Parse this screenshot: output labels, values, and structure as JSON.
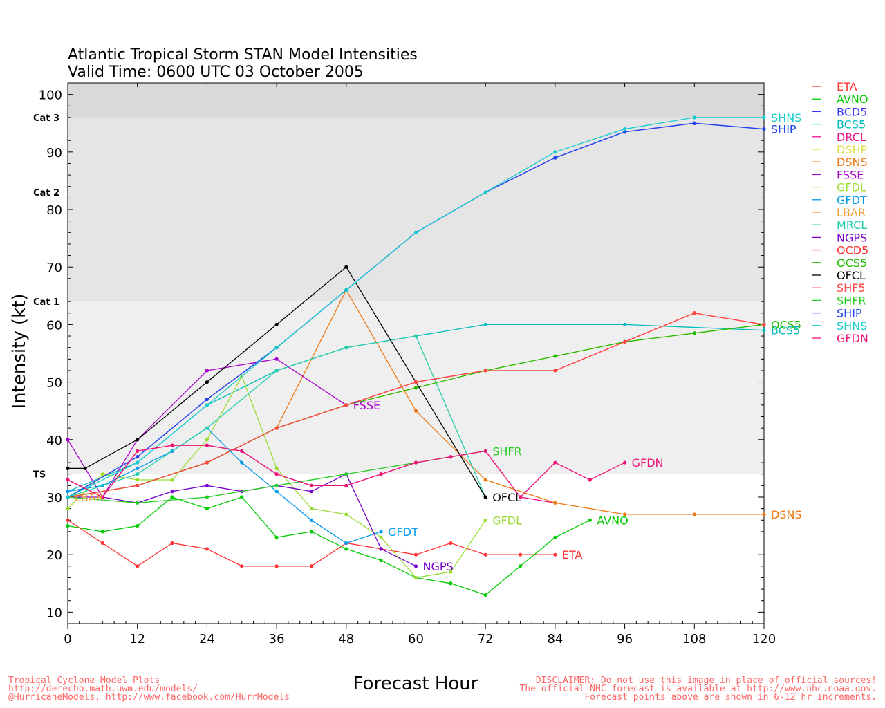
{
  "chart_data": {
    "type": "line",
    "title": "Atlantic Tropical Storm STAN Model Intensities",
    "subtitle": "Valid Time: 0600 UTC 03 October 2005",
    "xlabel": "Forecast Hour",
    "ylabel": "Intensity (kt)",
    "xlim": [
      0,
      120
    ],
    "ylim": [
      8,
      102
    ],
    "xticks": [
      0,
      12,
      24,
      36,
      48,
      60,
      72,
      84,
      96,
      108,
      120
    ],
    "yticks": [
      10,
      20,
      30,
      40,
      50,
      60,
      70,
      80,
      90,
      100
    ],
    "bands": [
      {
        "from": 34,
        "to": 64,
        "color": "#efefef"
      },
      {
        "from": 64,
        "to": 83,
        "color": "#e5e5e5"
      },
      {
        "from": 83,
        "to": 96,
        "color": "#e5e5e5"
      },
      {
        "from": 96,
        "to": 102,
        "color": "#d9d9d9"
      }
    ],
    "category_labels": [
      {
        "label": "TS",
        "value": 34
      },
      {
        "label": "Cat 1",
        "value": 64
      },
      {
        "label": "Cat 2",
        "value": 83
      },
      {
        "label": "Cat 3",
        "value": 96
      }
    ],
    "legend_position": "right",
    "series": [
      {
        "name": "ETA",
        "color": "#ff3333",
        "x": [
          0,
          6,
          12,
          18,
          24,
          30,
          36,
          42,
          48,
          54,
          60,
          66,
          72,
          78,
          84
        ],
        "y": [
          26,
          22,
          18,
          22,
          21,
          18,
          18,
          18,
          22,
          21,
          20,
          22,
          20,
          20,
          20
        ],
        "end_label": "ETA"
      },
      {
        "name": "AVNO",
        "color": "#00cc00",
        "x": [
          0,
          6,
          12,
          18,
          24,
          30,
          36,
          42,
          48,
          54,
          60,
          66,
          72,
          78,
          84,
          90
        ],
        "y": [
          25,
          24,
          25,
          30,
          28,
          30,
          23,
          24,
          21,
          19,
          16,
          15,
          13,
          18,
          23,
          26
        ],
        "end_label": "AVNO"
      },
      {
        "name": "BCD5",
        "color": "#3333ff",
        "x": [
          0,
          12,
          24,
          36,
          48,
          60,
          72,
          84,
          96,
          108,
          120
        ],
        "y": [
          30,
          37,
          47,
          56,
          66,
          76,
          83,
          89,
          93.5,
          95,
          94
        ],
        "end_label": ""
      },
      {
        "name": "BCS5",
        "color": "#00bbbb",
        "x": [
          0,
          12,
          24,
          36,
          48,
          72,
          96,
          120
        ],
        "y": [
          31,
          36,
          46,
          52,
          56,
          60,
          60,
          59
        ],
        "end_label": "BCS5"
      },
      {
        "name": "DRCL",
        "color": "#ee1188",
        "x": [
          0,
          6,
          12,
          18,
          24,
          30,
          36,
          42,
          48,
          54,
          60,
          66,
          72,
          78,
          84
        ],
        "y": [
          33,
          30,
          38,
          39,
          39,
          38,
          34,
          32,
          32,
          34,
          36,
          37,
          38,
          30,
          29
        ],
        "end_label": ""
      },
      {
        "name": "DSHP",
        "color": "#e0e040",
        "x": [
          0,
          12,
          24,
          36,
          48,
          60,
          72,
          84,
          96,
          108,
          120
        ],
        "y": [
          30,
          32,
          36,
          42,
          46,
          49,
          52,
          54.5,
          57,
          58.5,
          60
        ],
        "end_label": ""
      },
      {
        "name": "DSNS",
        "color": "#ee7711",
        "x": [
          0,
          12,
          24,
          36,
          48,
          60,
          72,
          84,
          96,
          108,
          120
        ],
        "y": [
          30,
          32,
          36,
          42,
          66,
          45,
          33,
          29,
          27,
          27,
          27
        ],
        "end_label": "DSNS"
      },
      {
        "name": "FSSE",
        "color": "#aa00cc",
        "x": [
          0,
          6,
          12,
          24,
          36,
          48
        ],
        "y": [
          40,
          30,
          40,
          52,
          54,
          46
        ],
        "end_label": "FSSE"
      },
      {
        "name": "GFDL",
        "color": "#99dd33",
        "x": [
          0,
          6,
          12,
          18,
          24,
          30,
          36,
          42,
          48,
          54,
          60,
          66,
          72
        ],
        "y": [
          28,
          34,
          33,
          33,
          40,
          51,
          35,
          28,
          27,
          23,
          16,
          17,
          26
        ],
        "end_label": "GFDL"
      },
      {
        "name": "GFDT",
        "color": "#0099ee",
        "x": [
          0,
          6,
          12,
          18,
          24,
          30,
          36,
          42,
          48,
          54
        ],
        "y": [
          31,
          32,
          35,
          38,
          42,
          36,
          31,
          26,
          22,
          24
        ],
        "end_label": "GFDT"
      },
      {
        "name": "LBAR",
        "color": "#ee9933",
        "x": [
          0
        ],
        "y": [
          30
        ],
        "end_label": "LBAR"
      },
      {
        "name": "MRCL",
        "color": "#22ccaa",
        "x": [
          0,
          12,
          24,
          36,
          48,
          60,
          72
        ],
        "y": [
          30,
          34,
          42,
          52,
          56,
          58,
          30
        ],
        "end_label": ""
      },
      {
        "name": "NGPS",
        "color": "#7700cc",
        "x": [
          0,
          6,
          12,
          18,
          24,
          30,
          36,
          42,
          48,
          54,
          60
        ],
        "y": [
          30,
          30,
          29,
          31,
          32,
          31,
          32,
          31,
          34,
          21,
          18
        ],
        "end_label": "NGPS"
      },
      {
        "name": "OCD5",
        "color": "#ff3333",
        "x": [
          0,
          12,
          24,
          36,
          48,
          60,
          72,
          84,
          96,
          108,
          120
        ],
        "y": [
          30,
          32,
          36,
          42,
          46,
          50,
          52,
          52,
          57,
          62,
          60
        ],
        "end_label": ""
      },
      {
        "name": "OCS5",
        "color": "#22bb00",
        "x": [
          0,
          12,
          24,
          36,
          48,
          60,
          72,
          84,
          96,
          108,
          120
        ],
        "y": [
          30,
          32,
          36,
          42,
          46,
          49,
          52,
          54.5,
          57,
          58.5,
          60
        ],
        "end_label": "OCS5"
      },
      {
        "name": "OFCL",
        "color": "#000000",
        "x": [
          0,
          3,
          12,
          24,
          36,
          48,
          72
        ],
        "y": [
          35,
          35,
          40,
          50,
          60,
          70,
          30
        ],
        "end_label": "OFCL"
      },
      {
        "name": "SHF5",
        "color": "#ff4444",
        "x": [
          0,
          12,
          24,
          36,
          48,
          60,
          72,
          84,
          96,
          108,
          120
        ],
        "y": [
          30,
          32,
          36,
          42,
          46,
          50,
          52,
          52,
          57,
          62,
          60
        ],
        "end_label": ""
      },
      {
        "name": "SHFR",
        "color": "#22cc22",
        "x": [
          0,
          12,
          24,
          36,
          48,
          60,
          72
        ],
        "y": [
          30,
          29,
          30,
          32,
          34,
          36,
          38
        ],
        "end_label": "SHFR"
      },
      {
        "name": "SHIP",
        "color": "#2244ee",
        "x": [
          0,
          12,
          24,
          36,
          48,
          60,
          72,
          84,
          96,
          108,
          120
        ],
        "y": [
          30,
          37,
          47,
          56,
          66,
          76,
          83,
          89,
          93.5,
          95,
          94
        ],
        "end_label": "SHIP"
      },
      {
        "name": "SHNS",
        "color": "#11cccc",
        "x": [
          0,
          12,
          24,
          36,
          48,
          60,
          72,
          84,
          96,
          108,
          120
        ],
        "y": [
          30,
          36,
          46,
          56,
          66,
          76,
          83,
          90,
          94,
          96,
          96
        ],
        "end_label": "SHNS"
      },
      {
        "name": "GFDN",
        "color": "#ee1177",
        "x": [
          0,
          6,
          12,
          18,
          24,
          30,
          36,
          42,
          48,
          54,
          60,
          66,
          72,
          78,
          84,
          90,
          96
        ],
        "y": [
          33,
          30,
          38,
          39,
          39,
          38,
          34,
          32,
          32,
          34,
          36,
          37,
          38,
          30,
          36,
          33,
          36
        ],
        "end_label": "GFDN"
      }
    ]
  },
  "footer": {
    "left_line1": "Tropical Cyclone Model Plots",
    "left_line2": "http://derecho.math.uwm.edu/models/",
    "left_line3": "@HurricaneModels, http://www.facebook.com/HurrModels",
    "right_line1": "DISCLAIMER: Do not use this image in place of official sources!",
    "right_line2": "The official NHC forecast is available at http://www.nhc.noaa.gov.",
    "right_line3": "Forecast points above are shown in 6-12 hr increments.",
    "left_color": "#ff6666",
    "right_color": "#ff6666"
  }
}
